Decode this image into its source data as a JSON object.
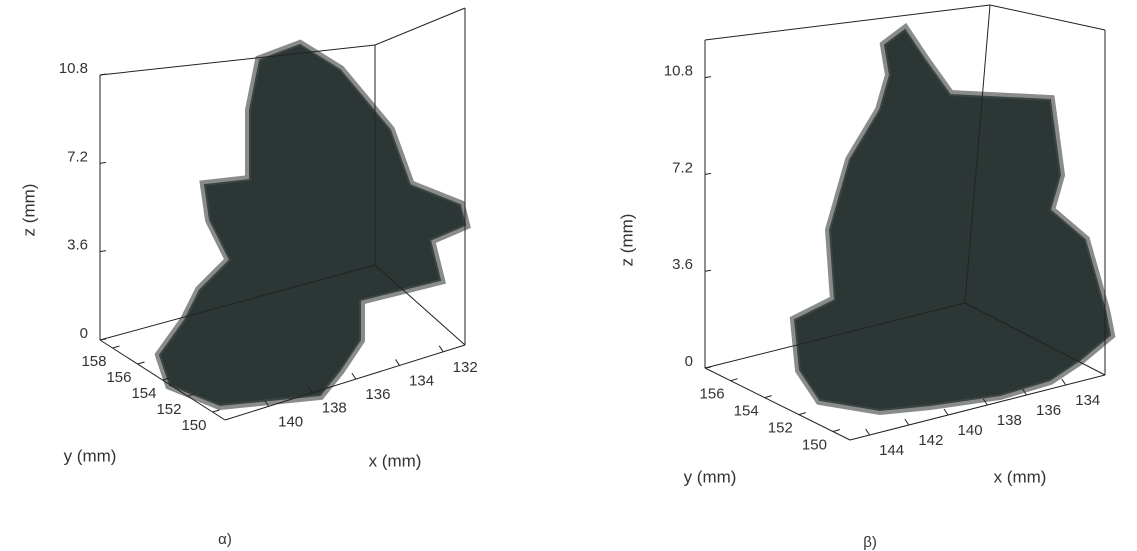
{
  "chart_data": [
    {
      "type": "voxel3d",
      "caption": "α)",
      "xlabel": "x (mm)",
      "ylabel": "y (mm)",
      "zlabel": "z (mm)",
      "xlim": [
        131,
        142
      ],
      "xticks": [
        132,
        134,
        136,
        138,
        140
      ],
      "ylim": [
        149,
        159
      ],
      "yticks": [
        150,
        152,
        154,
        156,
        158
      ],
      "zlim": [
        0,
        10.8
      ],
      "zticks": [
        0,
        3.6,
        7.2,
        10.8
      ]
    },
    {
      "type": "voxel3d",
      "caption": "β)",
      "xlabel": "x (mm)",
      "ylabel": "y (mm)",
      "zlabel": "z (mm)",
      "xlim": [
        132,
        145
      ],
      "xticks": [
        134,
        136,
        138,
        140,
        142,
        144
      ],
      "ylim": [
        149,
        157.5
      ],
      "yticks": [
        150,
        152,
        154,
        156
      ],
      "zlim": [
        0,
        12.2
      ],
      "zticks": [
        0,
        3.6,
        7.2,
        10.8
      ]
    }
  ]
}
